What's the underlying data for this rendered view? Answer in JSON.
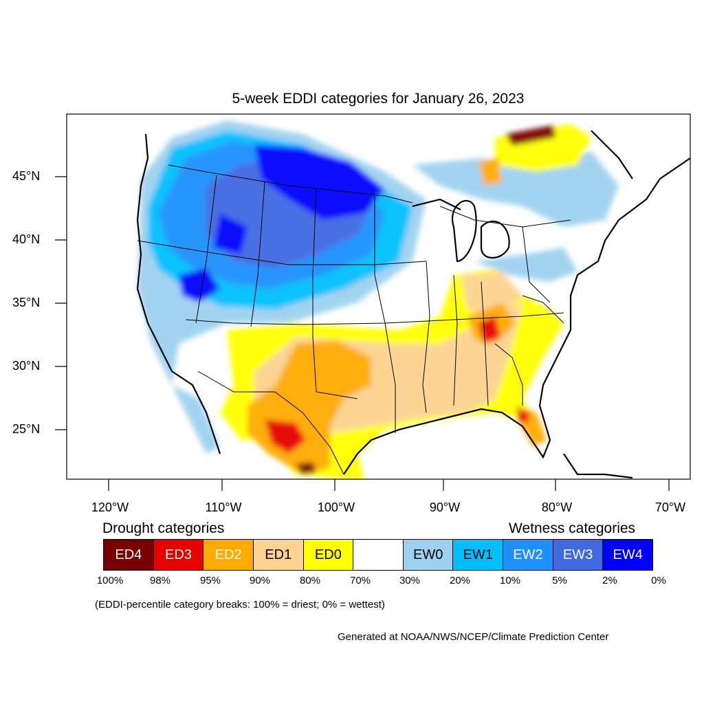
{
  "title": "5-week EDDI categories for January 26, 2023",
  "lat_labels": [
    "45°N",
    "40°N",
    "35°N",
    "30°N",
    "25°N"
  ],
  "lon_labels": [
    "120°W",
    "110°W",
    "100°W",
    "90°W",
    "80°W",
    "70°W"
  ],
  "legend": {
    "drought_title": "Drought categories",
    "wetness_title": "Wetness categories",
    "categories": [
      {
        "label": "ED4",
        "color": "#7a0000",
        "text_color": "#ffffff"
      },
      {
        "label": "ED3",
        "color": "#e60000",
        "text_color": "#ffffff"
      },
      {
        "label": "ED2",
        "color": "#ffaa00",
        "text_color": "#ffffff"
      },
      {
        "label": "ED1",
        "color": "#fcd38f",
        "text_color": "#000000"
      },
      {
        "label": "ED0",
        "color": "#ffff00",
        "text_color": "#000000"
      },
      {
        "label": "",
        "color": "#ffffff",
        "text_color": "#000000"
      },
      {
        "label": "EW0",
        "color": "#9dd1f0",
        "text_color": "#000000"
      },
      {
        "label": "EW1",
        "color": "#00bfff",
        "text_color": "#000000"
      },
      {
        "label": "EW2",
        "color": "#1e90ff",
        "text_color": "#ffffff"
      },
      {
        "label": "EW3",
        "color": "#4169e1",
        "text_color": "#ffffff"
      },
      {
        "label": "EW4",
        "color": "#0000ff",
        "text_color": "#ffffff"
      }
    ],
    "breaks": [
      "100%",
      "98%",
      "95%",
      "90%",
      "80%",
      "70%",
      "30%",
      "20%",
      "10%",
      "5%",
      "2%",
      "0%"
    ]
  },
  "note": "(EDDI-percentile category breaks: 100% = driest; 0% = wettest)",
  "credit": "Generated at NOAA/NWS/NCEP/Climate Prediction Center"
}
